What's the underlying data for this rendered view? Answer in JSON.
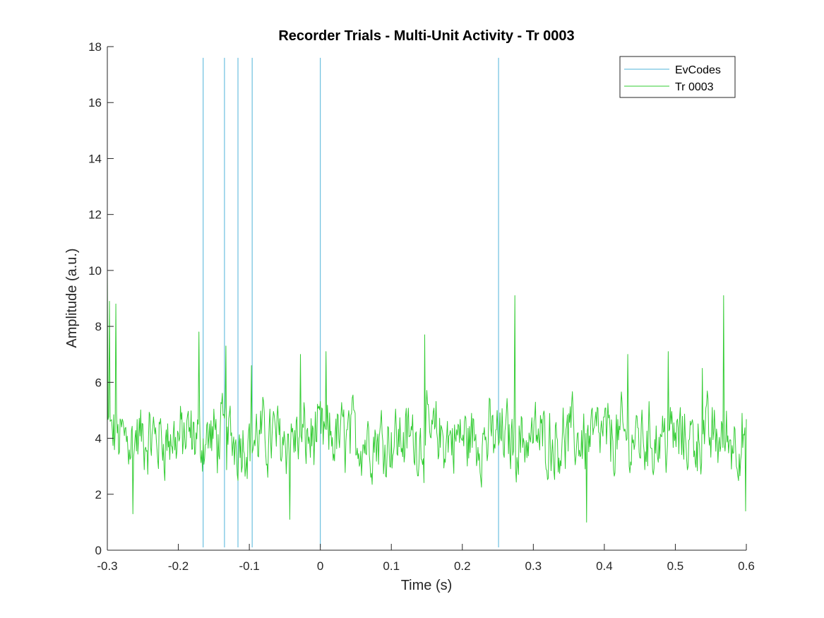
{
  "chart_data": {
    "type": "line",
    "title": "Recorder Trials - Multi-Unit Activity - Tr 0003",
    "xlabel": "Time (s)",
    "ylabel": "Amplitude (a.u.)",
    "xlim": [
      -0.3,
      0.6
    ],
    "ylim": [
      0,
      18
    ],
    "xticks": [
      -0.3,
      -0.2,
      -0.1,
      0,
      0.1,
      0.2,
      0.3,
      0.4,
      0.5,
      0.6
    ],
    "xtick_labels": [
      "-0.3",
      "-0.2",
      "-0.1",
      "0",
      "0.1",
      "0.2",
      "0.3",
      "0.4",
      "0.5",
      "0.6"
    ],
    "yticks": [
      0,
      2,
      4,
      6,
      8,
      10,
      12,
      14,
      16,
      18
    ],
    "ytick_labels": [
      "0",
      "2",
      "4",
      "6",
      "8",
      "10",
      "12",
      "14",
      "16",
      "18"
    ],
    "grid": false,
    "legend_position": "top-right",
    "colors": {
      "evcodes": "#4FB3D9",
      "trace": "#33CC33",
      "axis": "#262626"
    },
    "series": [
      {
        "name": "EvCodes",
        "kind": "vertical-lines",
        "x": [
          -0.165,
          -0.135,
          -0.116,
          -0.096,
          0.0,
          0.251
        ],
        "y_range": [
          0.1,
          17.6
        ]
      },
      {
        "name": "Tr 0003",
        "kind": "line",
        "x_start": -0.3,
        "x_end": 0.6,
        "sample_count": 901,
        "baseline_mean": 4.0,
        "peaks": [
          {
            "x": -0.3,
            "y": 10.0
          },
          {
            "x": -0.297,
            "y": 8.9
          },
          {
            "x": -0.288,
            "y": 8.8
          },
          {
            "x": -0.264,
            "y": 1.3
          },
          {
            "x": -0.171,
            "y": 7.8
          },
          {
            "x": -0.133,
            "y": 7.3
          },
          {
            "x": -0.097,
            "y": 6.6
          },
          {
            "x": -0.043,
            "y": 1.1
          },
          {
            "x": -0.028,
            "y": 7.0
          },
          {
            "x": 0.008,
            "y": 7.1
          },
          {
            "x": 0.147,
            "y": 7.7
          },
          {
            "x": 0.274,
            "y": 9.1
          },
          {
            "x": 0.375,
            "y": 1.0
          },
          {
            "x": 0.433,
            "y": 7.0
          },
          {
            "x": 0.49,
            "y": 7.1
          },
          {
            "x": 0.538,
            "y": 6.5
          },
          {
            "x": 0.568,
            "y": 9.1
          },
          {
            "x": 0.599,
            "y": 1.4
          }
        ]
      }
    ]
  }
}
